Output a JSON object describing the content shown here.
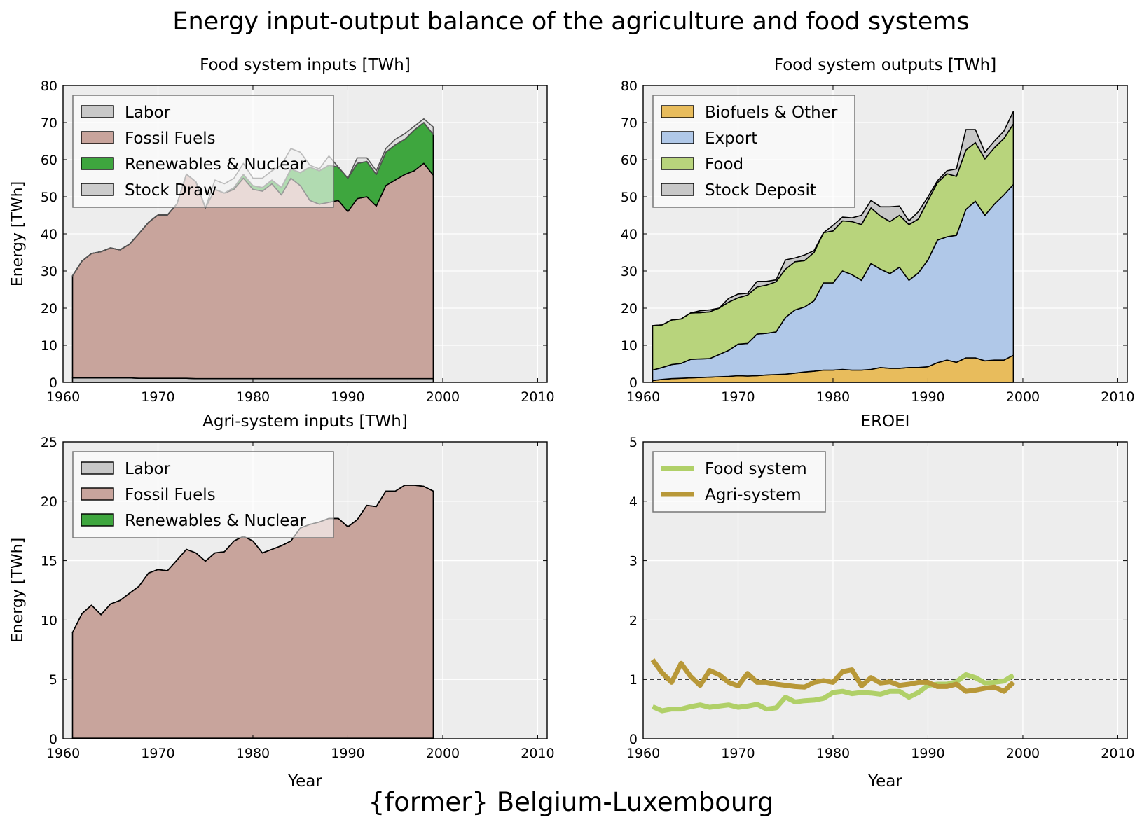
{
  "title": "Energy input-output balance of the agriculture and food systems",
  "footer": "{former} Belgium-Luxembourg",
  "colors": {
    "labor": "#c8c8c8",
    "fossil": "#c8a49c",
    "renew": "#3ea63e",
    "stock_draw": "#cccccc",
    "biofuels": "#e8bc5c",
    "export": "#b0c8e8",
    "food": "#b8d47c",
    "stock_deposit": "#c8c8c8",
    "eroei_food": "#b0d068",
    "eroei_agri": "#b89838",
    "plot_bg": "#ededed"
  },
  "chart_data": [
    {
      "id": "food_inputs",
      "type": "area",
      "title": "Food system inputs [TWh]",
      "xlabel": "",
      "ylabel": "Energy [TWh]",
      "xlim": [
        1960,
        2011
      ],
      "ylim": [
        0,
        80
      ],
      "xticks": [
        1960,
        1970,
        1980,
        1990,
        2000,
        2010
      ],
      "yticks": [
        0,
        10,
        20,
        30,
        40,
        50,
        60,
        70,
        80
      ],
      "grid": true,
      "legend_position": "top-left",
      "x": [
        1961,
        1962,
        1963,
        1964,
        1965,
        1966,
        1967,
        1968,
        1969,
        1970,
        1971,
        1972,
        1973,
        1974,
        1975,
        1976,
        1977,
        1978,
        1979,
        1980,
        1981,
        1982,
        1983,
        1984,
        1985,
        1986,
        1987,
        1988,
        1989,
        1990,
        1991,
        1992,
        1993,
        1994,
        1995,
        1996,
        1997,
        1998,
        1999
      ],
      "series": [
        {
          "name": "Labor",
          "color_key": "labor",
          "values": [
            1.2,
            1.2,
            1.2,
            1.2,
            1.2,
            1.2,
            1.2,
            1.1,
            1.1,
            1.1,
            1.1,
            1.1,
            1.1,
            1.0,
            1.0,
            1.0,
            1.0,
            1.0,
            1.0,
            1.0,
            1.0,
            1.0,
            1.0,
            1.0,
            1.0,
            1.0,
            1.0,
            1.0,
            1.0,
            1.0,
            1.0,
            1.0,
            1.0,
            1.0,
            1.0,
            1.0,
            1.0,
            1.0,
            1.0
          ]
        },
        {
          "name": "Fossil Fuels",
          "color_key": "fossil",
          "values": [
            27.5,
            31.5,
            33.5,
            34,
            35,
            34.5,
            36,
            39,
            42,
            44,
            44,
            47,
            55,
            53,
            46,
            51,
            50,
            51,
            54,
            51,
            50.5,
            52.5,
            49.5,
            54,
            52,
            48,
            47,
            47.5,
            48,
            45,
            48.5,
            49,
            46.5,
            52,
            53.5,
            55,
            56,
            58,
            54.8
          ]
        },
        {
          "name": "Renewables & Nuclear",
          "color_key": "renew",
          "values": [
            0,
            0,
            0,
            0,
            0,
            0,
            0,
            0,
            0,
            0,
            0,
            0,
            0,
            0,
            0,
            0,
            0,
            0.5,
            1,
            1,
            1,
            1,
            2,
            2.5,
            3.5,
            9,
            9,
            10,
            9,
            9,
            9.5,
            9.5,
            8.5,
            9,
            9.5,
            9.5,
            11,
            11,
            11
          ]
        },
        {
          "name": "Stock Draw",
          "color_key": "stock_draw",
          "values": [
            0,
            0,
            0,
            0,
            0,
            0,
            0,
            0,
            0,
            0,
            0,
            0,
            0,
            0,
            0,
            2.5,
            2.5,
            2.5,
            3,
            2,
            2.5,
            2.5,
            6,
            5.5,
            5.5,
            0.5,
            0.5,
            2.5,
            0,
            0,
            1.5,
            1,
            1,
            1,
            1.5,
            1.5,
            1,
            1,
            2
          ]
        }
      ]
    },
    {
      "id": "food_outputs",
      "type": "area",
      "title": "Food system outputs [TWh]",
      "xlabel": "",
      "ylabel": "",
      "xlim": [
        1960,
        2011
      ],
      "ylim": [
        0,
        80
      ],
      "xticks": [
        1960,
        1970,
        1980,
        1990,
        2000,
        2010
      ],
      "yticks": [
        0,
        10,
        20,
        30,
        40,
        50,
        60,
        70,
        80
      ],
      "grid": true,
      "legend_position": "top-left",
      "x": [
        1961,
        1962,
        1963,
        1964,
        1965,
        1966,
        1967,
        1968,
        1969,
        1970,
        1971,
        1972,
        1973,
        1974,
        1975,
        1976,
        1977,
        1978,
        1979,
        1980,
        1981,
        1982,
        1983,
        1984,
        1985,
        1986,
        1987,
        1988,
        1989,
        1990,
        1991,
        1992,
        1993,
        1994,
        1995,
        1996,
        1997,
        1998,
        1999
      ],
      "series": [
        {
          "name": "Biofuels & Other",
          "color_key": "biofuels",
          "values": [
            0.5,
            0.8,
            1,
            1.1,
            1.2,
            1.3,
            1.4,
            1.5,
            1.6,
            1.8,
            1.7,
            1.8,
            2,
            2.1,
            2.2,
            2.5,
            2.8,
            3,
            3.3,
            3.3,
            3.5,
            3.3,
            3.3,
            3.5,
            4,
            3.8,
            3.8,
            4,
            4,
            4.2,
            5.3,
            6,
            5.4,
            6.6,
            6.6,
            5.8,
            6,
            6,
            7.3
          ]
        },
        {
          "name": "Export",
          "color_key": "export",
          "values": [
            2.8,
            3.2,
            3.8,
            4,
            5,
            5,
            5,
            6,
            7,
            8.5,
            8.8,
            11.2,
            11.2,
            11.5,
            15.3,
            17,
            17.5,
            19,
            23.5,
            23.5,
            26.5,
            25.7,
            24.2,
            28.5,
            26.5,
            25.5,
            27.2,
            23.5,
            25.5,
            28.8,
            33,
            33.2,
            34.2,
            40,
            42.2,
            39.2,
            42,
            44.5,
            46
          ]
        },
        {
          "name": "Food",
          "color_key": "food",
          "values": [
            12,
            11.5,
            12,
            12,
            12.5,
            12.5,
            12.6,
            12.5,
            13,
            12.5,
            13,
            12.7,
            13,
            13.5,
            13,
            13,
            12.5,
            13,
            13.5,
            14,
            13.5,
            14.3,
            15,
            15,
            14.3,
            14,
            14,
            15,
            14.5,
            16,
            15.5,
            17,
            15.9,
            16,
            15.8,
            15.2,
            15.2,
            15.2,
            16.3
          ]
        },
        {
          "name": "Stock Deposit",
          "color_key": "stock_deposit",
          "values": [
            0,
            0,
            0,
            0,
            0,
            0.5,
            0.5,
            0,
            1,
            1,
            0.5,
            1.5,
            1,
            0.5,
            2.5,
            1,
            1.5,
            0.5,
            0,
            1.5,
            1,
            1,
            2.5,
            2,
            2.5,
            4,
            2.5,
            1,
            2,
            1,
            0.5,
            0.8,
            2,
            5.5,
            3.5,
            1.8,
            1.8,
            2,
            3.4
          ]
        }
      ]
    },
    {
      "id": "agri_inputs",
      "type": "area",
      "title": "Agri-system inputs [TWh]",
      "xlabel": "Year",
      "ylabel": "Energy [TWh]",
      "xlim": [
        1960,
        2011
      ],
      "ylim": [
        0,
        25
      ],
      "xticks": [
        1960,
        1970,
        1980,
        1990,
        2000,
        2010
      ],
      "yticks": [
        0,
        5,
        10,
        15,
        20,
        25
      ],
      "grid": true,
      "legend_position": "top-left",
      "x": [
        1961,
        1962,
        1963,
        1964,
        1965,
        1966,
        1967,
        1968,
        1969,
        1970,
        1971,
        1972,
        1973,
        1974,
        1975,
        1976,
        1977,
        1978,
        1979,
        1980,
        1981,
        1982,
        1983,
        1984,
        1985,
        1986,
        1987,
        1988,
        1989,
        1990,
        1991,
        1992,
        1993,
        1994,
        1995,
        1996,
        1997,
        1998,
        1999
      ],
      "series": [
        {
          "name": "Labor",
          "color_key": "labor",
          "values": [
            0.05,
            0.05,
            0.05,
            0.05,
            0.05,
            0.05,
            0.05,
            0.05,
            0.05,
            0.05,
            0.05,
            0.05,
            0.05,
            0.05,
            0.05,
            0.05,
            0.05,
            0.05,
            0.05,
            0.05,
            0.05,
            0.05,
            0.05,
            0.05,
            0.05,
            0.05,
            0.05,
            0.05,
            0.05,
            0.05,
            0.05,
            0.05,
            0.05,
            0.05,
            0.05,
            0.05,
            0.05,
            0.05,
            0.05
          ]
        },
        {
          "name": "Fossil Fuels",
          "color_key": "fossil",
          "values": [
            8.9,
            10.5,
            11.2,
            10.4,
            11.3,
            11.6,
            12.2,
            12.8,
            13.9,
            14.2,
            14.1,
            15,
            15.9,
            15.6,
            14.9,
            15.6,
            15.7,
            16.6,
            17,
            16.6,
            15.6,
            15.9,
            16.2,
            16.6,
            17.7,
            18,
            18.2,
            18.5,
            18.5,
            17.8,
            18.4,
            19.6,
            19.5,
            20.8,
            20.8,
            21.3,
            21.3,
            21.2,
            20.8
          ]
        },
        {
          "name": "Renewables & Nuclear",
          "color_key": "renew",
          "values": [
            0,
            0,
            0,
            0,
            0,
            0,
            0,
            0,
            0,
            0,
            0,
            0,
            0,
            0,
            0,
            0,
            0,
            0,
            0,
            0,
            0,
            0,
            0,
            0,
            0,
            0,
            0,
            0,
            0,
            0,
            0,
            0,
            0,
            0,
            0,
            0,
            0,
            0,
            0
          ]
        }
      ]
    },
    {
      "id": "eroei",
      "type": "line",
      "title": "EROEI",
      "xlabel": "Year",
      "ylabel": "",
      "xlim": [
        1960,
        2011
      ],
      "ylim": [
        0,
        5
      ],
      "xticks": [
        1960,
        1970,
        1980,
        1990,
        2000,
        2010
      ],
      "yticks": [
        0,
        1,
        2,
        3,
        4,
        5
      ],
      "grid": true,
      "reference_line": 1,
      "legend_position": "top-left",
      "x": [
        1961,
        1962,
        1963,
        1964,
        1965,
        1966,
        1967,
        1968,
        1969,
        1970,
        1971,
        1972,
        1973,
        1974,
        1975,
        1976,
        1977,
        1978,
        1979,
        1980,
        1981,
        1982,
        1983,
        1984,
        1985,
        1986,
        1987,
        1988,
        1989,
        1990,
        1991,
        1992,
        1993,
        1994,
        1995,
        1996,
        1997,
        1998,
        1999
      ],
      "series": [
        {
          "name": "Food system",
          "color_key": "eroei_food",
          "values": [
            0.54,
            0.47,
            0.5,
            0.5,
            0.54,
            0.57,
            0.53,
            0.55,
            0.57,
            0.53,
            0.55,
            0.58,
            0.5,
            0.52,
            0.7,
            0.62,
            0.64,
            0.65,
            0.68,
            0.78,
            0.8,
            0.76,
            0.78,
            0.77,
            0.75,
            0.8,
            0.8,
            0.7,
            0.78,
            0.9,
            0.92,
            0.92,
            0.96,
            1.08,
            1.03,
            0.94,
            0.95,
            0.97,
            1.07
          ]
        },
        {
          "name": "Agri-system",
          "color_key": "eroei_agri",
          "values": [
            1.33,
            1.11,
            0.95,
            1.27,
            1.05,
            0.9,
            1.15,
            1.08,
            0.95,
            0.89,
            1.1,
            0.95,
            0.95,
            0.92,
            0.9,
            0.88,
            0.87,
            0.95,
            0.98,
            0.95,
            1.13,
            1.16,
            0.89,
            1.03,
            0.94,
            0.96,
            0.9,
            0.92,
            0.95,
            0.95,
            0.88,
            0.88,
            0.92,
            0.8,
            0.82,
            0.85,
            0.87,
            0.8,
            0.95
          ]
        }
      ]
    }
  ]
}
